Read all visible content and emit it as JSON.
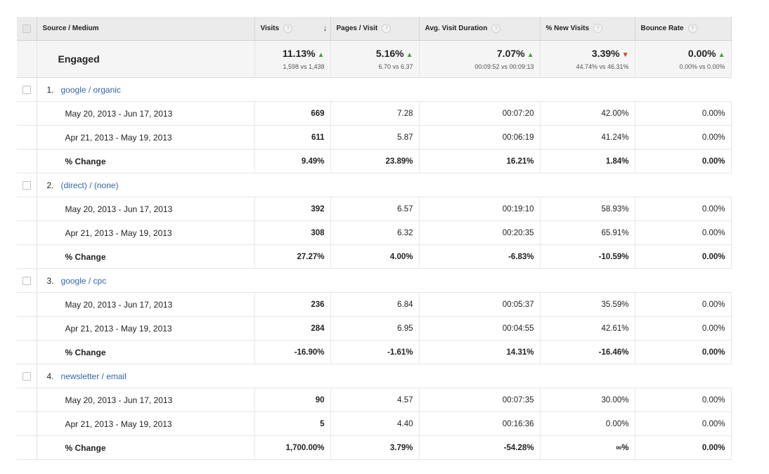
{
  "headers": {
    "source": "Source / Medium",
    "visits": "Visits",
    "pages_visit": "Pages / Visit",
    "avg_duration": "Avg. Visit Duration",
    "new_visits": "% New Visits",
    "bounce_rate": "Bounce Rate",
    "help_glyph": "?",
    "sort_glyph": "↓"
  },
  "engaged": {
    "label": "Engaged",
    "visits": {
      "pct": "11.13%",
      "trend": "up",
      "sub": "1,598 vs 1,438"
    },
    "pages_visit": {
      "pct": "5.16%",
      "trend": "up",
      "sub": "6.70 vs 6.37"
    },
    "avg_duration": {
      "pct": "7.07%",
      "trend": "up",
      "sub": "00:09:52 vs 00:09:13"
    },
    "new_visits": {
      "pct": "3.39%",
      "trend": "down",
      "sub": "44.74% vs 46.31%"
    },
    "bounce_rate": {
      "pct": "0.00%",
      "trend": "up",
      "sub": "0.00% vs 0.00%"
    }
  },
  "groups": [
    {
      "index": "1.",
      "name": "google / organic",
      "rows": [
        {
          "label": "May 20, 2013 - Jun 17, 2013",
          "visits": "669",
          "ppv": "7.28",
          "avg": "00:07:20",
          "new": "42.00%",
          "bounce": "0.00%"
        },
        {
          "label": "Apr 21, 2013 - May 19, 2013",
          "visits": "611",
          "ppv": "5.87",
          "avg": "00:06:19",
          "new": "41.24%",
          "bounce": "0.00%"
        },
        {
          "label": "% Change",
          "visits": "9.49%",
          "ppv": "23.89%",
          "avg": "16.21%",
          "new": "1.84%",
          "bounce": "0.00%"
        }
      ]
    },
    {
      "index": "2.",
      "name": "(direct) / (none)",
      "rows": [
        {
          "label": "May 20, 2013 - Jun 17, 2013",
          "visits": "392",
          "ppv": "6.57",
          "avg": "00:19:10",
          "new": "58.93%",
          "bounce": "0.00%"
        },
        {
          "label": "Apr 21, 2013 - May 19, 2013",
          "visits": "308",
          "ppv": "6.32",
          "avg": "00:20:35",
          "new": "65.91%",
          "bounce": "0.00%"
        },
        {
          "label": "% Change",
          "visits": "27.27%",
          "ppv": "4.00%",
          "avg": "-6.83%",
          "new": "-10.59%",
          "bounce": "0.00%"
        }
      ]
    },
    {
      "index": "3.",
      "name": "google / cpc",
      "rows": [
        {
          "label": "May 20, 2013 - Jun 17, 2013",
          "visits": "236",
          "ppv": "6.84",
          "avg": "00:05:37",
          "new": "35.59%",
          "bounce": "0.00%"
        },
        {
          "label": "Apr 21, 2013 - May 19, 2013",
          "visits": "284",
          "ppv": "6.95",
          "avg": "00:04:55",
          "new": "42.61%",
          "bounce": "0.00%"
        },
        {
          "label": "% Change",
          "visits": "-16.90%",
          "ppv": "-1.61%",
          "avg": "14.31%",
          "new": "-16.46%",
          "bounce": "0.00%"
        }
      ]
    },
    {
      "index": "4.",
      "name": "newsletter / email",
      "rows": [
        {
          "label": "May 20, 2013 - Jun 17, 2013",
          "visits": "90",
          "ppv": "4.57",
          "avg": "00:07:35",
          "new": "30.00%",
          "bounce": "0.00%"
        },
        {
          "label": "Apr 21, 2013 - May 19, 2013",
          "visits": "5",
          "ppv": "4.40",
          "avg": "00:16:36",
          "new": "0.00%",
          "bounce": "0.00%"
        },
        {
          "label": "% Change",
          "visits": "1,700.00%",
          "ppv": "3.79%",
          "avg": "-54.28%",
          "new": "∞%",
          "bounce": "0.00%"
        }
      ]
    }
  ],
  "colors": {
    "up": "#3fa535",
    "down": "#e3342f",
    "link": "#3366aa"
  }
}
